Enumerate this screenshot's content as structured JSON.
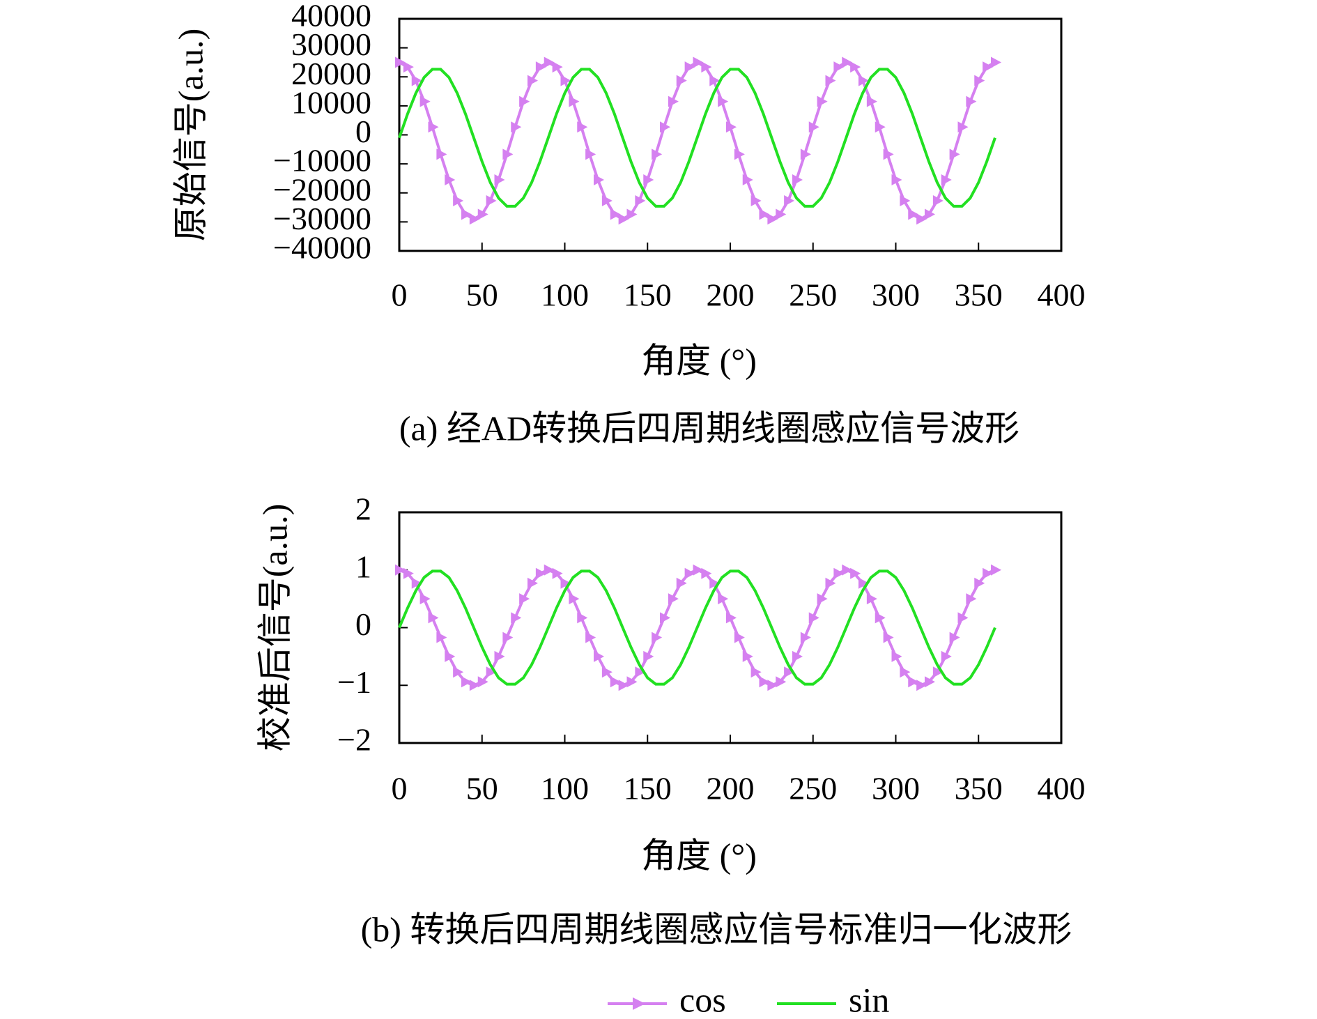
{
  "chart_data": [
    {
      "type": "line",
      "caption": "(a) 经AD转换后四周期线圈感应信号波形",
      "xlabel": "角度 (°)",
      "ylabel": "原始信号(a.u.)",
      "x": [
        0,
        5,
        10,
        15,
        20,
        25,
        30,
        35,
        40,
        45,
        50,
        55,
        60,
        65,
        70,
        75,
        80,
        85,
        90,
        95,
        100,
        105,
        110,
        115,
        120,
        125,
        130,
        135,
        140,
        145,
        150,
        155,
        160,
        165,
        170,
        175,
        180,
        185,
        190,
        195,
        200,
        205,
        210,
        215,
        220,
        225,
        230,
        235,
        240,
        245,
        250,
        255,
        260,
        265,
        270,
        275,
        280,
        285,
        290,
        295,
        300,
        305,
        310,
        315,
        320,
        325,
        330,
        335,
        340,
        345,
        350,
        355,
        360
      ],
      "series": [
        {
          "color": "#d580f0",
          "marker": "triangle",
          "values": [
            25000,
            23400,
            18700,
            11500,
            2700,
            -6700,
            -15500,
            -22700,
            -27400,
            -29000,
            -27400,
            -22700,
            -15500,
            -6700,
            2700,
            11500,
            18700,
            23400,
            25000,
            23400,
            18700,
            11500,
            2700,
            -6700,
            -15500,
            -22700,
            -27400,
            -29000,
            -27400,
            -22700,
            -15500,
            -6700,
            2700,
            11500,
            18700,
            23400,
            25000,
            23400,
            18700,
            11500,
            2700,
            -6700,
            -15500,
            -22700,
            -27400,
            -29000,
            -27400,
            -22700,
            -15500,
            -6700,
            2700,
            11500,
            18700,
            23400,
            25000,
            23400,
            18700,
            11500,
            2700,
            -6700,
            -15500,
            -22700,
            -27400,
            -29000,
            -27400,
            -22700,
            -15500,
            -6700,
            2700,
            11500,
            18700,
            23400,
            25000
          ]
        },
        {
          "color": "#22e022",
          "values": [
            -1000,
            7200,
            14400,
            19800,
            22600,
            22600,
            19800,
            14400,
            7200,
            -1000,
            -9200,
            -16400,
            -21800,
            -24600,
            -24600,
            -21800,
            -16400,
            -9200,
            -1000,
            7200,
            14400,
            19800,
            22600,
            22600,
            19800,
            14400,
            7200,
            -1000,
            -9200,
            -16400,
            -21800,
            -24600,
            -24600,
            -21800,
            -16400,
            -9200,
            -1000,
            7200,
            14400,
            19800,
            22600,
            22600,
            19800,
            14400,
            7200,
            -1000,
            -9200,
            -16400,
            -21800,
            -24600,
            -24600,
            -21800,
            -16400,
            -9200,
            -1000,
            7200,
            14400,
            19800,
            22600,
            22600,
            19800,
            14400,
            7200,
            -1000,
            -9200,
            -16400,
            -21800,
            -24600,
            -24600,
            -21800,
            -16400,
            -9200,
            -1000
          ]
        }
      ],
      "xlim": [
        0,
        400
      ],
      "xticks": [
        0,
        50,
        100,
        150,
        200,
        250,
        300,
        350,
        400
      ],
      "ylim": [
        -40000,
        40000
      ],
      "yticks": [
        {
          "value": -40000,
          "label": "−40000"
        },
        {
          "value": -30000,
          "label": "−30000"
        },
        {
          "value": -20000,
          "label": "−20000"
        },
        {
          "value": -10000,
          "label": "−10000"
        },
        0,
        10000,
        20000,
        30000,
        40000
      ]
    },
    {
      "type": "line",
      "caption": "(b) 转换后四周期线圈感应信号标准归一化波形",
      "xlabel": "角度 (°)",
      "ylabel": "校准后信号(a.u.)",
      "x": [
        0,
        5,
        10,
        15,
        20,
        25,
        30,
        35,
        40,
        45,
        50,
        55,
        60,
        65,
        70,
        75,
        80,
        85,
        90,
        95,
        100,
        105,
        110,
        115,
        120,
        125,
        130,
        135,
        140,
        145,
        150,
        155,
        160,
        165,
        170,
        175,
        180,
        185,
        190,
        195,
        200,
        205,
        210,
        215,
        220,
        225,
        230,
        235,
        240,
        245,
        250,
        255,
        260,
        265,
        270,
        275,
        280,
        285,
        290,
        295,
        300,
        305,
        310,
        315,
        320,
        325,
        330,
        335,
        340,
        345,
        350,
        355,
        360
      ],
      "series": [
        {
          "name": "cos",
          "color": "#d580f0",
          "marker": "triangle",
          "values": [
            1,
            0.94,
            0.77,
            0.5,
            0.17,
            -0.17,
            -0.5,
            -0.77,
            -0.94,
            -1,
            -0.94,
            -0.77,
            -0.5,
            -0.17,
            0.17,
            0.5,
            0.77,
            0.94,
            1,
            0.94,
            0.77,
            0.5,
            0.17,
            -0.17,
            -0.5,
            -0.77,
            -0.94,
            -1,
            -0.94,
            -0.77,
            -0.5,
            -0.17,
            0.17,
            0.5,
            0.77,
            0.94,
            1,
            0.94,
            0.77,
            0.5,
            0.17,
            -0.17,
            -0.5,
            -0.77,
            -0.94,
            -1,
            -0.94,
            -0.77,
            -0.5,
            -0.17,
            0.17,
            0.5,
            0.77,
            0.94,
            1,
            0.94,
            0.77,
            0.5,
            0.17,
            -0.17,
            -0.5,
            -0.77,
            -0.94,
            -1,
            -0.94,
            -0.77,
            -0.5,
            -0.17,
            0.17,
            0.5,
            0.77,
            0.94,
            1
          ]
        },
        {
          "name": "sin",
          "color": "#22e022",
          "values": [
            0,
            0.34,
            0.64,
            0.87,
            0.98,
            0.98,
            0.87,
            0.64,
            0.34,
            0,
            -0.34,
            -0.64,
            -0.87,
            -0.98,
            -0.98,
            -0.87,
            -0.64,
            -0.34,
            0,
            0.34,
            0.64,
            0.87,
            0.98,
            0.98,
            0.87,
            0.64,
            0.34,
            0,
            -0.34,
            -0.64,
            -0.87,
            -0.98,
            -0.98,
            -0.87,
            -0.64,
            -0.34,
            0,
            0.34,
            0.64,
            0.87,
            0.98,
            0.98,
            0.87,
            0.64,
            0.34,
            0,
            -0.34,
            -0.64,
            -0.87,
            -0.98,
            -0.98,
            -0.87,
            -0.64,
            -0.34,
            0,
            0.34,
            0.64,
            0.87,
            0.98,
            0.98,
            0.87,
            0.64,
            0.34,
            0,
            -0.34,
            -0.64,
            -0.87,
            -0.98,
            -0.98,
            -0.87,
            -0.64,
            -0.34,
            0
          ]
        }
      ],
      "xlim": [
        0,
        400
      ],
      "xticks": [
        0,
        50,
        100,
        150,
        200,
        250,
        300,
        350,
        400
      ],
      "ylim": [
        -2,
        2
      ],
      "yticks": [
        {
          "value": -2,
          "label": "−2"
        },
        {
          "value": -1,
          "label": "−1"
        },
        0,
        1,
        2
      ]
    }
  ]
}
